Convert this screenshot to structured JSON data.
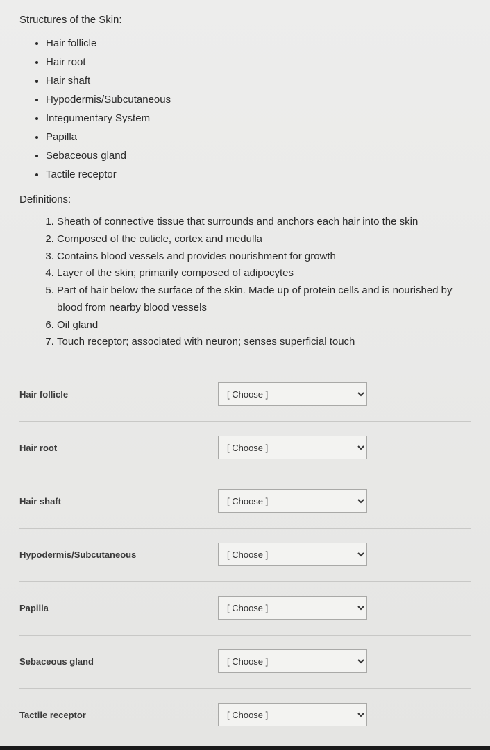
{
  "heading_structures": "Structures of the Skin:",
  "structures": [
    "Hair follicle",
    "Hair root",
    "Hair shaft",
    "Hypodermis/Subcutaneous",
    "Integumentary System",
    "Papilla",
    "Sebaceous gland",
    "Tactile receptor"
  ],
  "heading_definitions": "Definitions:",
  "definitions": [
    "Sheath of connective tissue that surrounds and anchors each hair into the skin",
    "Composed of the cuticle, cortex and medulla",
    "Contains blood vessels and provides nourishment for growth",
    "Layer of the skin; primarily composed of adipocytes",
    "Part of hair below the surface of the skin. Made up of protein cells and is nourished by blood from nearby blood vessels",
    "Oil gland",
    "Touch receptor; associated with neuron; senses superficial touch"
  ],
  "matching_rows": [
    {
      "label": "Hair follicle"
    },
    {
      "label": "Hair root"
    },
    {
      "label": "Hair shaft"
    },
    {
      "label": "Hypodermis/Subcutaneous"
    },
    {
      "label": "Papilla"
    },
    {
      "label": "Sebaceous gland"
    },
    {
      "label": "Tactile receptor"
    }
  ],
  "choose_placeholder": "[ Choose ]"
}
